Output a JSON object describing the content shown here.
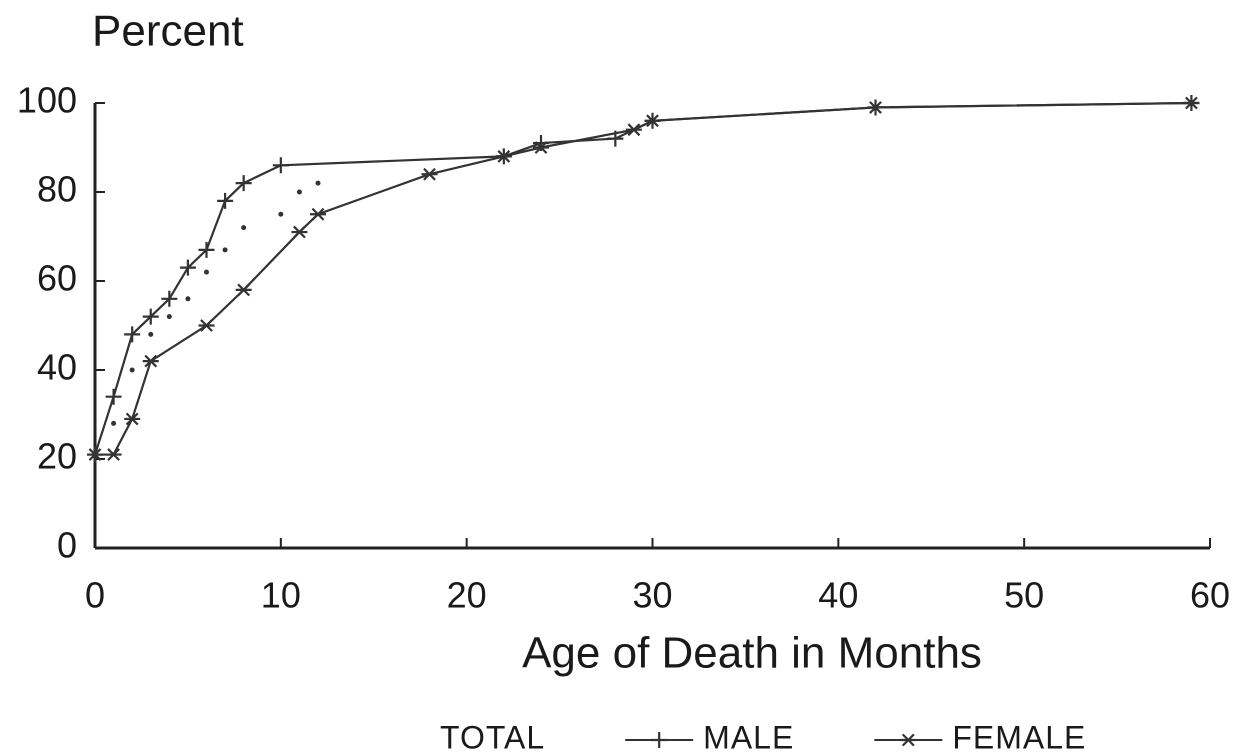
{
  "chart_data": {
    "type": "line",
    "ylabel": "Percent",
    "xlabel": "Age of Death in Months",
    "xlim": [
      0,
      60
    ],
    "xticks": [
      0,
      10,
      20,
      30,
      40,
      50,
      60
    ],
    "ylim": [
      0,
      100
    ],
    "yticks": [
      0,
      20,
      40,
      60,
      80,
      100
    ],
    "series": [
      {
        "name": "TOTAL",
        "color": "#333333",
        "marker": "dot",
        "line": false,
        "x": [
          0,
          1,
          2,
          3,
          4,
          5,
          6,
          7,
          8,
          10,
          11,
          12,
          22,
          30,
          42,
          59
        ],
        "values": [
          21,
          28,
          40,
          48,
          52,
          56,
          62,
          67,
          72,
          75,
          80,
          82,
          88,
          96,
          99,
          100
        ]
      },
      {
        "name": "MALE",
        "color": "#333333",
        "marker": "plus",
        "line": true,
        "x": [
          0,
          1,
          2,
          3,
          4,
          5,
          6,
          7,
          8,
          10,
          22,
          24,
          28,
          30,
          42,
          59
        ],
        "values": [
          21,
          34,
          48,
          52,
          56,
          63,
          67,
          78,
          82,
          86,
          88,
          91,
          92,
          96,
          99,
          100
        ]
      },
      {
        "name": "FEMALE",
        "color": "#333333",
        "marker": "star",
        "line": true,
        "x": [
          0,
          1,
          2,
          3,
          6,
          8,
          11,
          12,
          18,
          22,
          24,
          29,
          30,
          42,
          59
        ],
        "values": [
          21,
          21,
          29,
          42,
          50,
          58,
          71,
          75,
          84,
          88,
          90,
          94,
          96,
          99,
          100
        ]
      }
    ]
  }
}
